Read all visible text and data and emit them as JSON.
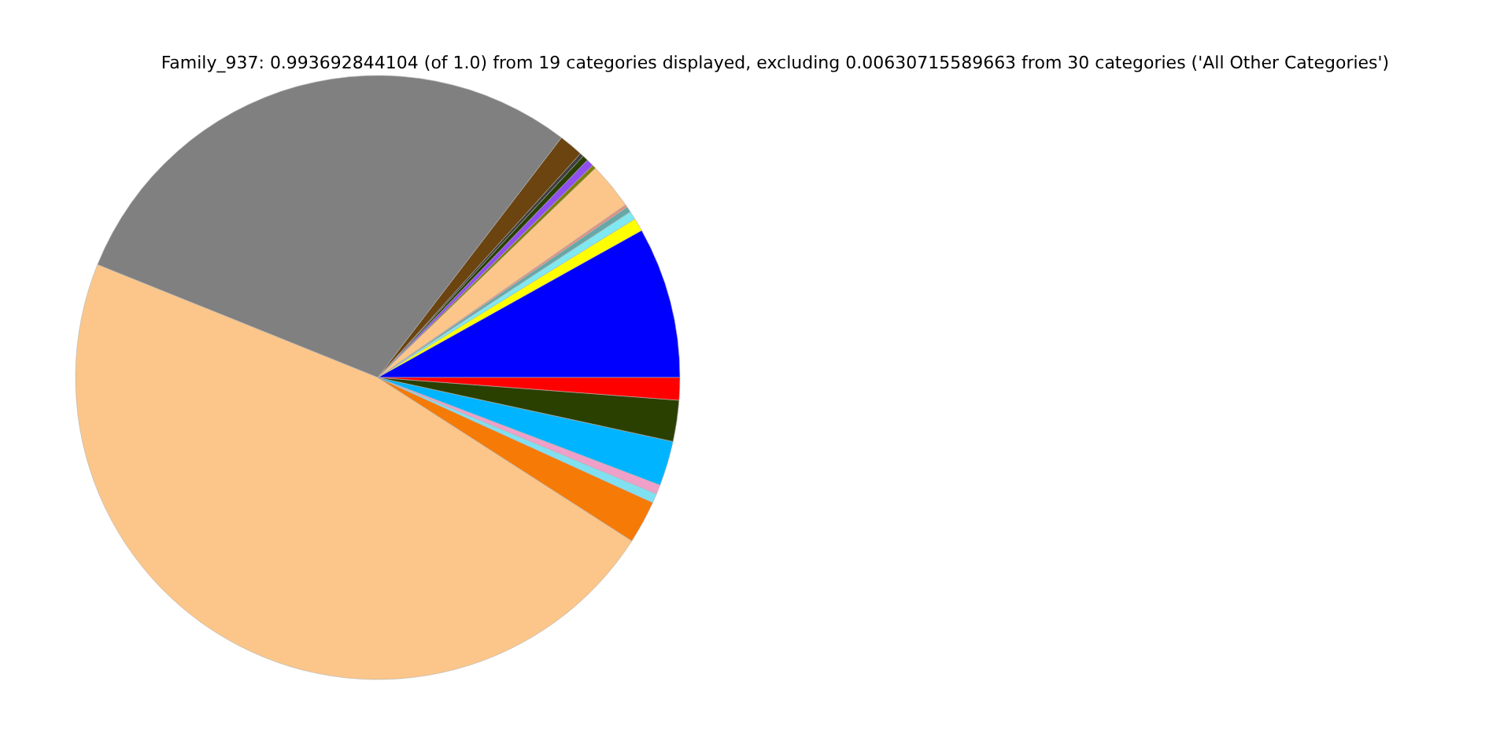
{
  "chart_data": {
    "type": "pie",
    "title": "Family_937: 0.993692844104 (of 1.0) from 19 categories displayed, excluding 0.00630715589663 from 30 categories ('All Other Categories')",
    "categories": [
      null,
      null,
      null,
      null,
      null,
      null,
      null,
      null,
      null,
      null,
      null,
      null,
      null,
      null,
      null,
      null,
      null,
      null,
      null
    ],
    "values": [
      8.1,
      0.7,
      0.45,
      0.3,
      0.15,
      2.5,
      0.2,
      0.4,
      0.3,
      0.2,
      1.3,
      29.3,
      47.0,
      2.3,
      0.5,
      0.5,
      2.4,
      2.2,
      1.2
    ],
    "colors": [
      "#0000ff",
      "#ffff00",
      "#80e8f0",
      "#66a8a8",
      "#e09080",
      "#fcc68a",
      "#808000",
      "#9050f0",
      "#2a4000",
      "#404040",
      "#6b4410",
      "#808080",
      "#fcc68a",
      "#f57a06",
      "#80e0f0",
      "#f0a0c8",
      "#00b4ff",
      "#2a4000",
      "#ff0000"
    ],
    "legend": false
  }
}
